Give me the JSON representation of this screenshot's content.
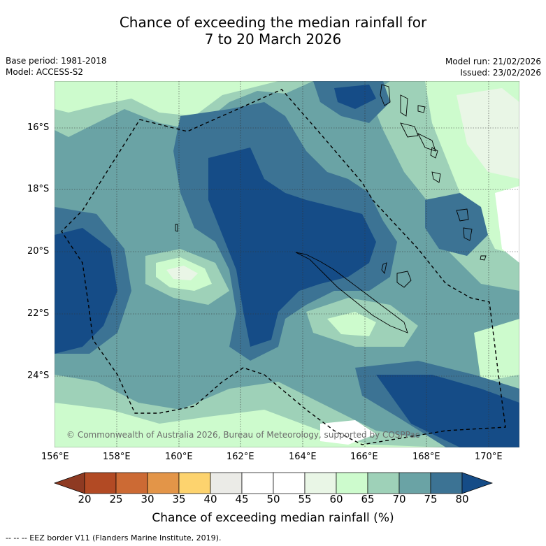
{
  "title": {
    "line1": "Chance of exceeding the median rainfall for",
    "line2": "7 to 20 March 2026"
  },
  "meta": {
    "base_period": "Base period: 1981-2018",
    "model": "Model: ACCESS-S2",
    "model_run": "Model run: 21/02/2026",
    "issued": "Issued: 23/02/2026"
  },
  "map": {
    "lat_labels": [
      "16°S",
      "18°S",
      "20°S",
      "22°S",
      "24°S"
    ],
    "lon_labels": [
      "156°E",
      "158°E",
      "160°E",
      "162°E",
      "164°E",
      "166°E",
      "168°E",
      "170°E"
    ],
    "copyright": "© Commonwealth of Australia 2026, Bureau of Meteorology, supported by COSPPac"
  },
  "colorbar": {
    "ticks": [
      "20",
      "25",
      "30",
      "35",
      "40",
      "45",
      "50",
      "55",
      "60",
      "65",
      "70",
      "75",
      "80"
    ],
    "colors": [
      "#8e3a22",
      "#b24a24",
      "#cc6a34",
      "#e39548",
      "#fdd36e",
      "#ebebe7",
      "#ffffff",
      "#ffffff",
      "#e9f6e6",
      "#cdfbcd",
      "#9ed1b8",
      "#6aa3a5",
      "#3c7394",
      "#154c87"
    ],
    "label": "Chance of exceeding median rainfall (%)"
  },
  "footer": "-- -- -- EEZ border V11 (Flanders Marine Institute, 2019)."
}
